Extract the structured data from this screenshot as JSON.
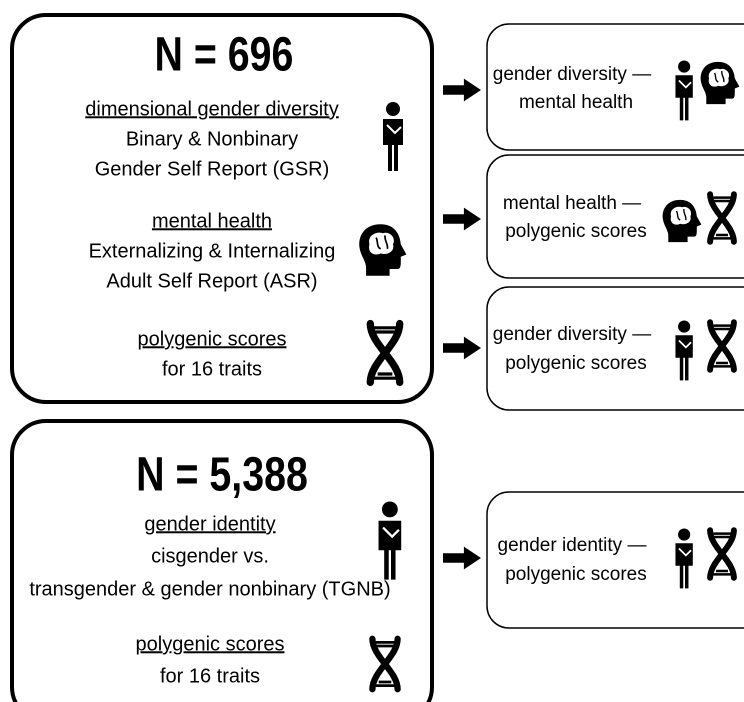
{
  "cohorts": [
    {
      "n": "N = 696",
      "measures": [
        {
          "title": "dimensional gender diversity",
          "lines": [
            "Binary & Nonbinary",
            "Gender Self Report (GSR)"
          ]
        },
        {
          "title": "mental health",
          "lines": [
            "Externalizing & Internalizing",
            "Adult Self Report (ASR)"
          ]
        },
        {
          "title": "polygenic scores ",
          "lines": [
            "for 16 traits"
          ]
        }
      ]
    },
    {
      "n": "N = 5,388",
      "measures": [
        {
          "title": "gender identity",
          "lines": [
            "cisgender vs.",
            "transgender & gender nonbinary (TGNB)"
          ]
        },
        {
          "title": "polygenic scores ",
          "lines": [
            "for 16 traits"
          ]
        }
      ]
    }
  ],
  "analyses": [
    {
      "lines": [
        "gender diversity —",
        "mental health"
      ]
    },
    {
      "lines": [
        "mental health —",
        "polygenic scores"
      ]
    },
    {
      "lines": [
        "gender diversity —",
        "polygenic scores"
      ]
    },
    {
      "lines": [
        "gender identity —",
        "polygenic scores"
      ]
    }
  ]
}
